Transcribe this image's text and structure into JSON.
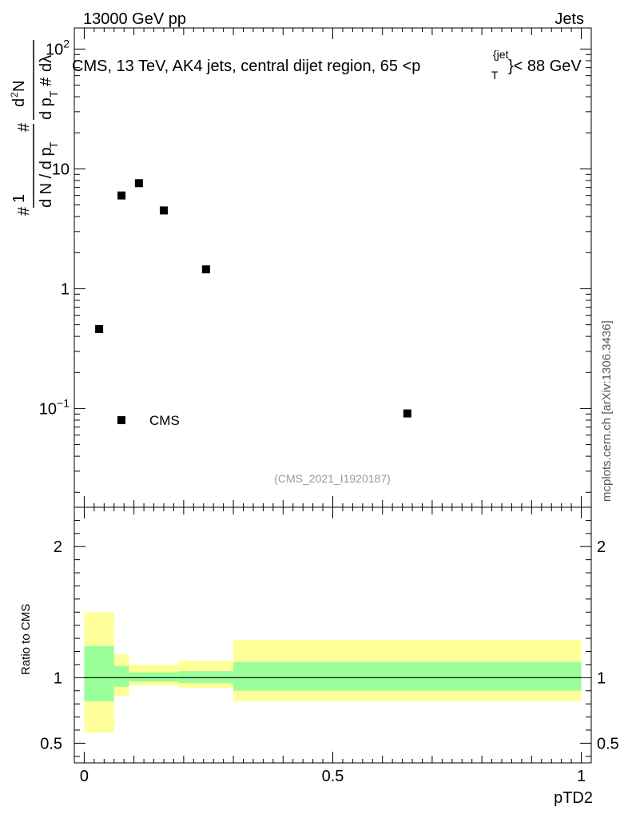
{
  "header": {
    "energy_label": "13000 GeV pp",
    "category_label": "Jets"
  },
  "side_label": "mcplots.cern.ch [arXiv:1306.3436]",
  "analysis_id": "(CMS_2021_I1920187)",
  "chart_data": [
    {
      "type": "scatter",
      "panel": "main",
      "title_parts": {
        "prefix": "CMS, 13 TeV, AK4 jets, central dijet region, 65 <p",
        "sub": "T",
        "sup": "{jet",
        "suffix": "}< 88 GeV"
      },
      "ylabel": "1/(dN/dpT) d²N/(dpT dλ)",
      "yscale": "log",
      "ylim": [
        0.015,
        150
      ],
      "xlim": [
        -0.02,
        1.02
      ],
      "y_ticks": [
        {
          "value": 0.1,
          "base": "10",
          "exp": "−1"
        },
        {
          "value": 1,
          "base": "1",
          "exp": ""
        },
        {
          "value": 10,
          "base": "10",
          "exp": ""
        },
        {
          "value": 100,
          "base": "10",
          "exp": "2"
        }
      ],
      "series": [
        {
          "name": "CMS",
          "marker": "square",
          "x": [
            0.03,
            0.075,
            0.11,
            0.16,
            0.245,
            0.65
          ],
          "y": [
            0.46,
            6.0,
            7.6,
            4.5,
            1.45,
            0.091
          ]
        }
      ],
      "legend": {
        "label": "CMS",
        "placement": "bottom-left"
      }
    },
    {
      "type": "area",
      "panel": "ratio",
      "ylabel": "Ratio to CMS",
      "xlabel": "pTD2",
      "ylim": [
        0.35,
        2.3
      ],
      "xlim": [
        -0.02,
        1.02
      ],
      "y_ticks": [
        0.5,
        1,
        2
      ],
      "y_tick_labels": [
        "0.5",
        "1",
        "2"
      ],
      "x_ticks": [
        0,
        0.5,
        1
      ],
      "x_tick_labels": [
        "0",
        "0.5",
        "1"
      ],
      "reference_line": 1,
      "bins": [
        {
          "lo": 0.0,
          "hi": 0.06,
          "inner": [
            0.82,
            1.24
          ],
          "outer": [
            0.58,
            1.5
          ]
        },
        {
          "lo": 0.06,
          "hi": 0.09,
          "inner": [
            0.93,
            1.09
          ],
          "outer": [
            0.86,
            1.18
          ]
        },
        {
          "lo": 0.09,
          "hi": 0.19,
          "inner": [
            0.97,
            1.04
          ],
          "outer": [
            0.94,
            1.1
          ]
        },
        {
          "lo": 0.19,
          "hi": 0.3,
          "inner": [
            0.96,
            1.05
          ],
          "outer": [
            0.92,
            1.13
          ]
        },
        {
          "lo": 0.3,
          "hi": 1.0,
          "inner": [
            0.9,
            1.12
          ],
          "outer": [
            0.82,
            1.29
          ]
        }
      ],
      "colors": {
        "inner": "#99ff99",
        "outer": "#ffff99",
        "line": "#000000"
      }
    }
  ]
}
